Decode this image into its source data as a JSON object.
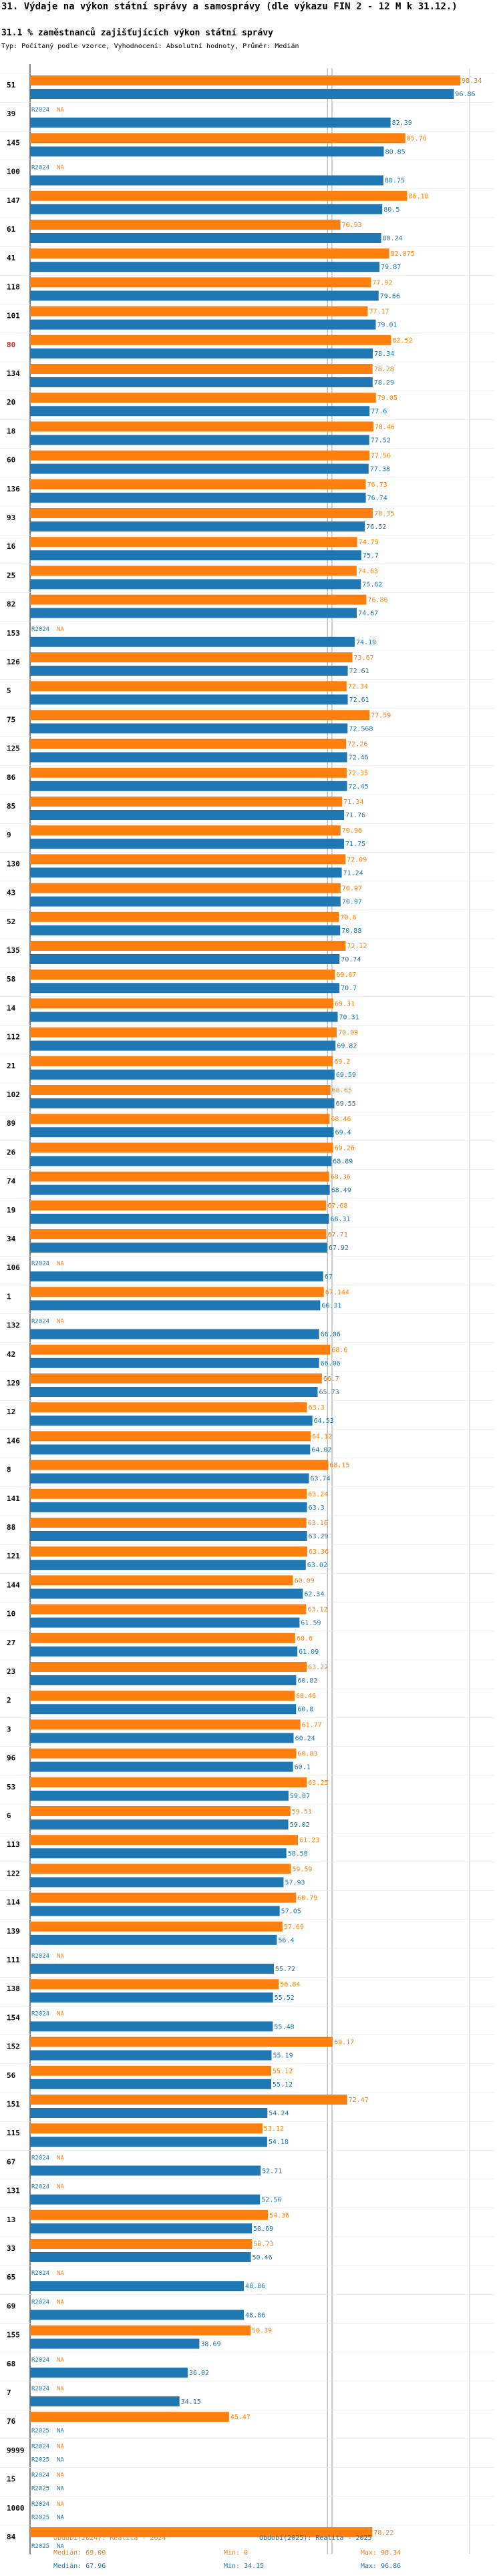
{
  "title": "31. Výdaje na výkon státní správy a samosprávy (dle výkazu FIN 2 - 12 M k 31.12.)",
  "subtitle": "31.1 % zaměstnanců zajišťujících výkon státní správy",
  "type_line": "Typ: Počítaný podle vzorce, Vyhodnocení: Absolutní hodnoty, Průměr: Medián",
  "colors": {
    "s2024": "#ff7f0e",
    "s2025": "#1f77b4",
    "grid": "#c8c8c8",
    "median_line": "#888888",
    "highlight": "#d62728"
  },
  "chart_data": {
    "type": "bar",
    "orientation": "horizontal",
    "xlim": [
      0,
      100
    ],
    "highlighted_category": "80",
    "categories": [
      "51",
      "39",
      "145",
      "100",
      "147",
      "61",
      "41",
      "118",
      "101",
      "80",
      "134",
      "20",
      "18",
      "60",
      "136",
      "93",
      "16",
      "25",
      "82",
      "153",
      "126",
      "5",
      "75",
      "125",
      "86",
      "85",
      "9",
      "130",
      "43",
      "52",
      "135",
      "58",
      "14",
      "112",
      "21",
      "102",
      "89",
      "26",
      "74",
      "19",
      "34",
      "106",
      "1",
      "132",
      "42",
      "129",
      "12",
      "146",
      "8",
      "141",
      "88",
      "121",
      "144",
      "10",
      "27",
      "23",
      "2",
      "3",
      "96",
      "53",
      "6",
      "113",
      "122",
      "114",
      "139",
      "111",
      "138",
      "154",
      "152",
      "56",
      "151",
      "115",
      "67",
      "131",
      "13",
      "33",
      "65",
      "69",
      "155",
      "68",
      "7",
      "76",
      "9999",
      "15",
      "1000",
      "84"
    ],
    "series": [
      {
        "name": "R2024",
        "values": [
          98.34,
          null,
          85.76,
          null,
          86.18,
          70.93,
          82.075,
          77.92,
          77.17,
          82.52,
          78.28,
          79.05,
          78.46,
          77.56,
          76.73,
          78.35,
          74.75,
          74.63,
          76.86,
          null,
          73.67,
          72.34,
          77.59,
          72.26,
          72.35,
          71.34,
          70.96,
          72.09,
          70.97,
          70.6,
          72.12,
          69.67,
          69.31,
          70.09,
          69.2,
          68.65,
          68.46,
          69.26,
          68.36,
          67.68,
          67.71,
          null,
          67.144,
          null,
          68.6,
          66.7,
          63.3,
          64.12,
          68.15,
          63.24,
          63.16,
          63.36,
          60.09,
          63.12,
          60.6,
          63.22,
          60.46,
          61.77,
          60.83,
          63.25,
          59.51,
          61.23,
          59.59,
          60.79,
          57.69,
          null,
          56.84,
          null,
          69.17,
          55.12,
          72.47,
          53.12,
          null,
          null,
          54.36,
          50.73,
          null,
          null,
          50.39,
          null,
          null,
          45.47,
          null,
          null,
          null,
          78.22
        ]
      },
      {
        "name": "R2025",
        "values": [
          96.86,
          82.39,
          80.85,
          80.75,
          80.5,
          80.24,
          79.87,
          79.66,
          79.01,
          78.34,
          78.29,
          77.6,
          77.52,
          77.38,
          76.74,
          76.52,
          75.7,
          75.62,
          74.67,
          74.19,
          72.61,
          72.61,
          72.568,
          72.46,
          72.45,
          71.76,
          71.75,
          71.24,
          70.97,
          70.88,
          70.74,
          70.7,
          70.31,
          69.82,
          69.59,
          69.55,
          69.4,
          68.89,
          68.49,
          68.31,
          67.92,
          67.0,
          66.31,
          66.06,
          66.06,
          65.73,
          64.53,
          64.02,
          63.74,
          63.3,
          63.29,
          63.02,
          62.34,
          61.59,
          61.09,
          60.82,
          60.8,
          60.24,
          60.1,
          59.07,
          59.02,
          58.58,
          57.93,
          57.05,
          56.4,
          55.72,
          55.52,
          55.48,
          55.19,
          55.12,
          54.24,
          54.18,
          52.71,
          52.56,
          50.69,
          50.46,
          48.86,
          48.86,
          38.69,
          36.02,
          34.15,
          null,
          null,
          null,
          null,
          null
        ]
      }
    ],
    "median_label_2024": "Medián: 69.00",
    "median_label_2025": "Medián: 67.96"
  },
  "legend": {
    "period_2024": "Období(2024): Realita - 2024",
    "period_2025": "Období(2025): Realita - 2025",
    "median_2024": "Medián: 69.00",
    "median_2025": "Medián: 67.96",
    "min_2024": "Min: 0",
    "min_2025": "Min: 34.15",
    "max_2024": "Max: 98.34",
    "max_2025": "Max: 96.86"
  },
  "no_value_label": "NA",
  "row_label_2024": "R2024",
  "row_label_2025": "R2025"
}
